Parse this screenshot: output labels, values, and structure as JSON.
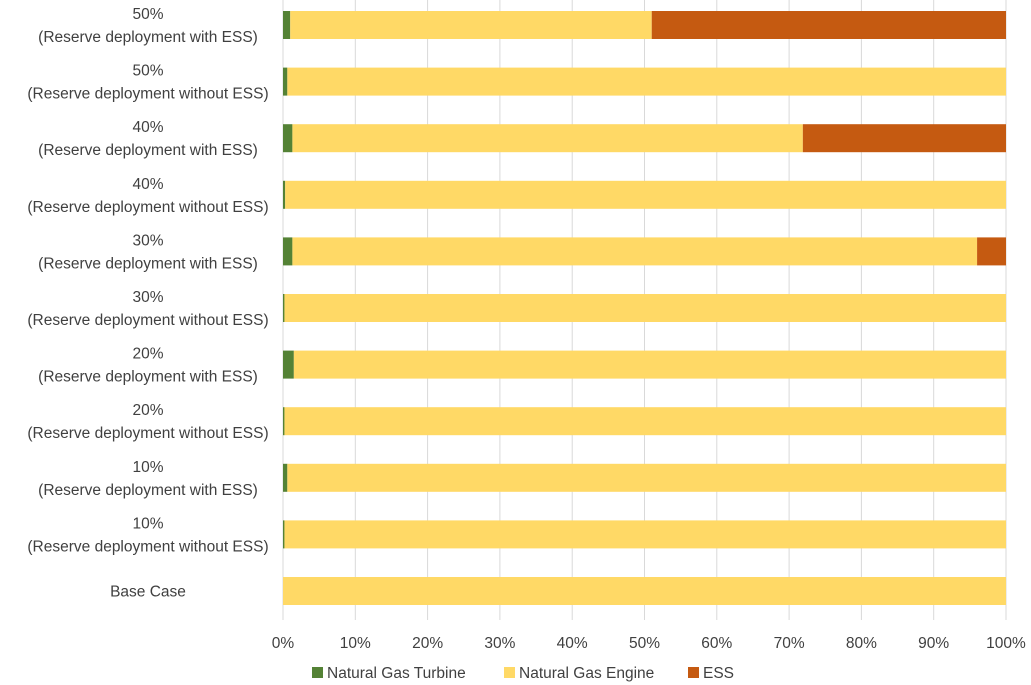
{
  "chart_data": {
    "type": "bar",
    "orientation": "horizontal",
    "stacked": "100%",
    "title": "",
    "xlabel": "",
    "ylabel": "",
    "xlim": [
      0,
      100
    ],
    "x_ticks": [
      "0%",
      "10%",
      "20%",
      "30%",
      "40%",
      "50%",
      "60%",
      "70%",
      "80%",
      "90%",
      "100%"
    ],
    "grid": "vertical",
    "legend_position": "bottom",
    "categories": [
      [
        "50%",
        "(Reserve deployment with ESS)"
      ],
      [
        "50%",
        "(Reserve deployment without ESS)"
      ],
      [
        "40%",
        "(Reserve deployment with ESS)"
      ],
      [
        "40%",
        "(Reserve deployment without ESS)"
      ],
      [
        "30%",
        "(Reserve deployment with ESS)"
      ],
      [
        "30%",
        "(Reserve deployment without ESS)"
      ],
      [
        "20%",
        "(Reserve deployment with ESS)"
      ],
      [
        "20%",
        "(Reserve deployment without ESS)"
      ],
      [
        "10%",
        "(Reserve deployment with ESS)"
      ],
      [
        "10%",
        "(Reserve deployment without ESS)"
      ],
      [
        "Base Case"
      ]
    ],
    "series": [
      {
        "name": "Natural Gas Turbine",
        "color": "#548235",
        "values": [
          1.0,
          0.6,
          1.3,
          0.3,
          1.3,
          0.2,
          1.5,
          0.2,
          0.6,
          0.2,
          0.0
        ]
      },
      {
        "name": "Natural Gas Engine",
        "color": "#FFD966",
        "values": [
          50.0,
          99.4,
          70.6,
          99.7,
          94.7,
          99.8,
          98.5,
          99.8,
          99.4,
          99.8,
          100.0
        ]
      },
      {
        "name": "ESS",
        "color": "#C55A11",
        "values": [
          49.0,
          0.0,
          28.1,
          0.0,
          4.0,
          0.0,
          0.0,
          0.0,
          0.0,
          0.0,
          0.0
        ]
      }
    ]
  }
}
